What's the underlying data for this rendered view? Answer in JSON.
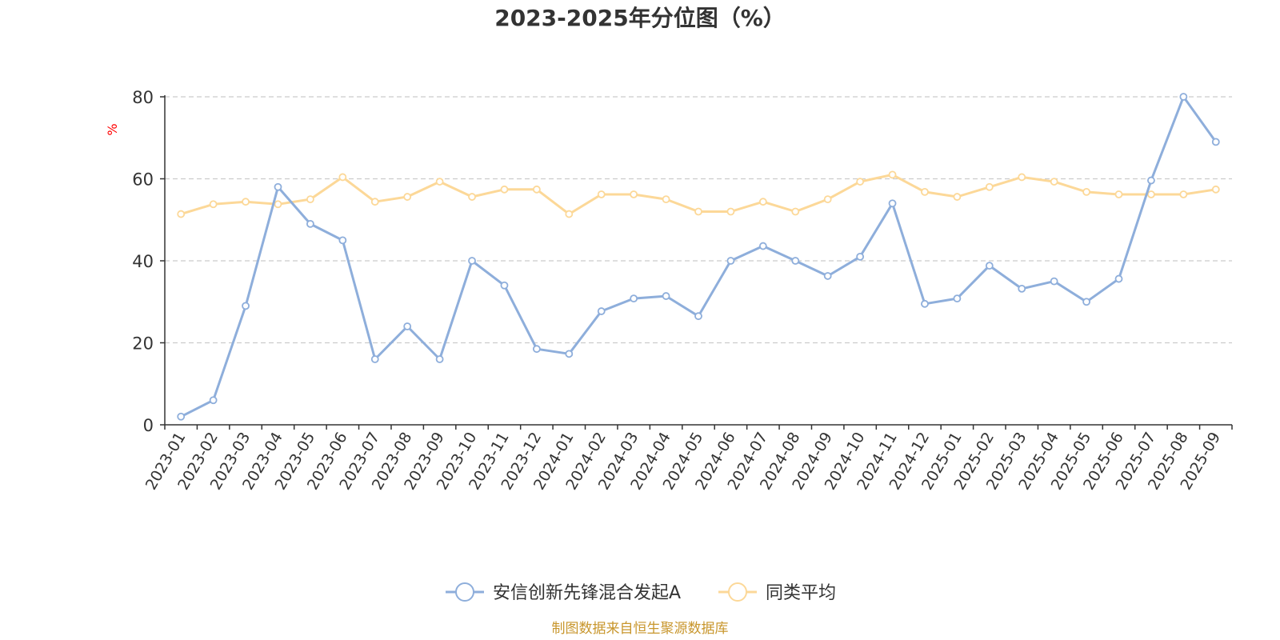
{
  "colors": {
    "series_primary": "#8eaedb",
    "series_secondary": "#fcd898",
    "unit": "#ff0000",
    "source": "#c8962c",
    "axis": "#333333",
    "grid": "#cccccc"
  },
  "chart_data": {
    "type": "line",
    "title": "2023-2025年分位图（%）",
    "ylabel": "%",
    "xlabel": "",
    "ylim": [
      0,
      80
    ],
    "yticks": [
      "0",
      "20",
      "40",
      "60",
      "80"
    ],
    "grid": "horizontal dashed",
    "legend_position": "bottom-center",
    "categories": [
      "2023-01",
      "2023-02",
      "2023-03",
      "2023-04",
      "2023-05",
      "2023-06",
      "2023-07",
      "2023-08",
      "2023-09",
      "2023-10",
      "2023-11",
      "2023-12",
      "2024-01",
      "2024-02",
      "2024-03",
      "2024-04",
      "2024-05",
      "2024-06",
      "2024-07",
      "2024-08",
      "2024-09",
      "2024-10",
      "2024-11",
      "2024-12",
      "2025-01",
      "2025-02",
      "2025-03",
      "2025-04",
      "2025-05",
      "2025-06",
      "2025-07",
      "2025-08",
      "2025-09"
    ],
    "series": [
      {
        "name": "安信创新先锋混合发起A",
        "values": [
          2,
          6,
          29,
          58,
          49,
          45,
          16,
          24,
          16,
          40,
          34,
          18.5,
          17.3,
          27.7,
          30.8,
          31.4,
          26.5,
          40,
          43.6,
          40,
          36.3,
          41,
          54,
          29.5,
          30.8,
          38.8,
          33.2,
          35,
          30,
          35.6,
          59.6,
          80,
          69
        ]
      },
      {
        "name": "同类平均",
        "values": [
          51.4,
          53.8,
          54.4,
          53.8,
          55,
          60.4,
          54.4,
          55.6,
          59.3,
          55.6,
          57.4,
          57.4,
          51.4,
          56.2,
          56.2,
          55,
          52,
          52,
          54.4,
          52,
          55,
          59.3,
          61,
          56.8,
          55.6,
          58,
          60.4,
          59.3,
          56.8,
          56.2,
          56.2,
          56.2,
          57.4
        ]
      }
    ]
  },
  "source_note": "制图数据来自恒生聚源数据库"
}
